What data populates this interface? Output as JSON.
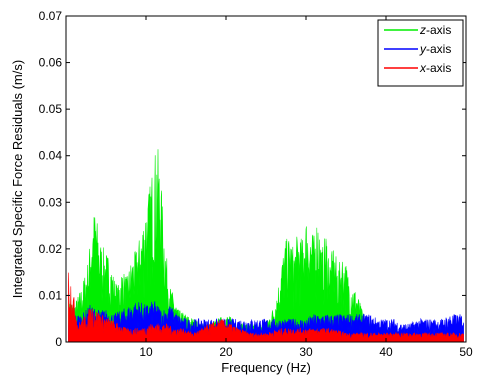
{
  "chart_data": {
    "type": "area",
    "title": "",
    "xlabel": "Frequency (Hz)",
    "ylabel": "Integrated Specific Force Residuals (m/s)",
    "xlim": [
      0,
      50
    ],
    "ylim": [
      0,
      0.07
    ],
    "xticks": [
      10,
      20,
      30,
      40,
      50
    ],
    "yticks": [
      0,
      0.01,
      0.02,
      0.03,
      0.04,
      0.05,
      0.06,
      0.07
    ],
    "ytick_labels": [
      "0",
      "0.01",
      "0.02",
      "0.03",
      "0.04",
      "0.05",
      "0.06",
      "0.07"
    ],
    "grid": false,
    "legend_position": "top-right",
    "series": [
      {
        "name": "z-axis",
        "legend_label": "-axis",
        "legend_prefix": "z",
        "color": "#00ee00",
        "envelope_x": [
          0.3,
          1.0,
          2.0,
          2.8,
          3.3,
          3.7,
          4.2,
          4.8,
          5.5,
          6.0,
          6.5,
          7.0,
          7.6,
          8.2,
          8.8,
          9.4,
          10.0,
          10.5,
          11.0,
          11.4,
          11.8,
          12.2,
          12.6,
          13.0,
          13.5,
          14.0,
          15.0,
          16.0,
          17.0,
          18.0,
          19.0,
          20.0,
          21.0,
          22.0,
          23.0,
          24.0,
          25.0,
          26.0,
          26.5,
          27.0,
          27.5,
          28.0,
          28.5,
          29.0,
          29.5,
          30.0,
          30.5,
          31.0,
          31.5,
          32.0,
          32.5,
          33.0,
          33.5,
          34.0,
          34.5,
          35.0,
          35.5,
          36.0,
          36.5,
          37.0,
          38.0,
          39.0,
          40.0,
          42.0,
          44.0,
          46.0,
          48.0,
          49.5
        ],
        "envelope_y": [
          0.01,
          0.008,
          0.012,
          0.018,
          0.027,
          0.029,
          0.022,
          0.02,
          0.018,
          0.014,
          0.012,
          0.016,
          0.014,
          0.018,
          0.02,
          0.024,
          0.03,
          0.034,
          0.04,
          0.043,
          0.037,
          0.026,
          0.018,
          0.012,
          0.01,
          0.007,
          0.006,
          0.005,
          0.004,
          0.004,
          0.005,
          0.006,
          0.005,
          0.004,
          0.004,
          0.004,
          0.004,
          0.008,
          0.012,
          0.018,
          0.022,
          0.023,
          0.02,
          0.024,
          0.022,
          0.027,
          0.025,
          0.023,
          0.028,
          0.02,
          0.024,
          0.018,
          0.021,
          0.016,
          0.019,
          0.017,
          0.013,
          0.012,
          0.01,
          0.007,
          0.004,
          0.003,
          0.002,
          0.002,
          0.002,
          0.002,
          0.002,
          0.002
        ]
      },
      {
        "name": "y-axis",
        "legend_label": "-axis",
        "legend_prefix": "y",
        "color": "#0000ff",
        "envelope_x": [
          0.3,
          1.0,
          2.0,
          3.0,
          4.0,
          5.0,
          6.0,
          7.0,
          8.0,
          9.0,
          10.0,
          11.0,
          12.0,
          13.0,
          14.0,
          15.0,
          16.0,
          17.0,
          18.0,
          19.0,
          20.0,
          21.0,
          22.0,
          23.0,
          24.0,
          25.0,
          26.0,
          27.0,
          28.0,
          29.0,
          30.0,
          31.0,
          32.0,
          33.0,
          34.0,
          35.0,
          36.0,
          37.0,
          38.0,
          39.0,
          40.0,
          41.0,
          42.0,
          43.0,
          44.0,
          45.0,
          46.0,
          47.0,
          48.0,
          49.0,
          49.7
        ],
        "envelope_y": [
          0.007,
          0.006,
          0.006,
          0.008,
          0.007,
          0.007,
          0.006,
          0.007,
          0.008,
          0.009,
          0.008,
          0.009,
          0.007,
          0.008,
          0.006,
          0.005,
          0.005,
          0.005,
          0.005,
          0.005,
          0.005,
          0.005,
          0.005,
          0.005,
          0.005,
          0.005,
          0.005,
          0.005,
          0.005,
          0.005,
          0.005,
          0.006,
          0.006,
          0.006,
          0.006,
          0.006,
          0.006,
          0.006,
          0.006,
          0.005,
          0.005,
          0.005,
          0.004,
          0.004,
          0.005,
          0.005,
          0.005,
          0.005,
          0.006,
          0.006,
          0.006
        ]
      },
      {
        "name": "x-axis",
        "legend_label": "-axis",
        "legend_prefix": "x",
        "color": "#ff0000",
        "envelope_x": [
          0.3,
          0.8,
          1.5,
          2.5,
          3.2,
          3.8,
          4.5,
          5.5,
          6.5,
          7.5,
          8.5,
          9.5,
          10.5,
          11.5,
          12.5,
          13.5,
          14.5,
          16.0,
          18.0,
          19.5,
          20.5,
          21.5,
          23.0,
          25.0,
          27.0,
          29.0,
          31.0,
          33.0,
          35.0,
          37.0,
          39.0,
          41.0,
          43.0,
          45.0,
          47.0,
          49.0,
          49.7
        ],
        "envelope_y": [
          0.016,
          0.012,
          0.004,
          0.006,
          0.008,
          0.007,
          0.006,
          0.005,
          0.004,
          0.003,
          0.003,
          0.003,
          0.004,
          0.004,
          0.004,
          0.003,
          0.003,
          0.002,
          0.004,
          0.005,
          0.004,
          0.003,
          0.002,
          0.002,
          0.003,
          0.003,
          0.003,
          0.003,
          0.002,
          0.002,
          0.002,
          0.002,
          0.002,
          0.002,
          0.002,
          0.002,
          0.002
        ]
      }
    ]
  }
}
